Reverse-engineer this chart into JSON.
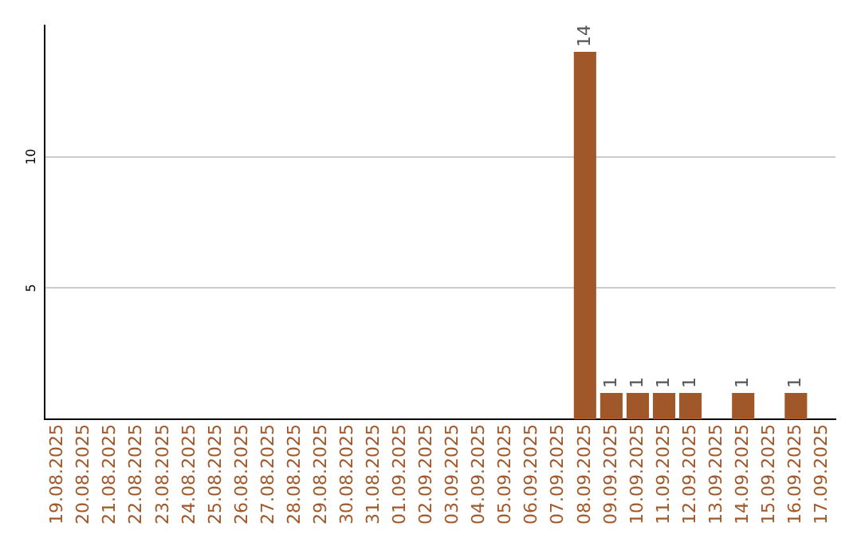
{
  "chart_data": {
    "type": "bar",
    "categories": [
      "19.08.2025",
      "20.08.2025",
      "21.08.2025",
      "22.08.2025",
      "23.08.2025",
      "24.08.2025",
      "25.08.2025",
      "26.08.2025",
      "27.08.2025",
      "28.08.2025",
      "29.08.2025",
      "30.08.2025",
      "31.08.2025",
      "01.09.2025",
      "02.09.2025",
      "03.09.2025",
      "04.09.2025",
      "05.09.2025",
      "06.09.2025",
      "07.09.2025",
      "08.09.2025",
      "09.09.2025",
      "10.09.2025",
      "11.09.2025",
      "12.09.2025",
      "13.09.2025",
      "14.09.2025",
      "15.09.2025",
      "16.09.2025",
      "17.09.2025"
    ],
    "values": [
      0,
      0,
      0,
      0,
      0,
      0,
      0,
      0,
      0,
      0,
      0,
      0,
      0,
      0,
      0,
      0,
      0,
      0,
      0,
      0,
      14,
      1,
      1,
      1,
      1,
      0,
      1,
      0,
      1,
      0
    ],
    "value_labels": [
      null,
      null,
      null,
      null,
      null,
      null,
      null,
      null,
      null,
      null,
      null,
      null,
      null,
      null,
      null,
      null,
      null,
      null,
      null,
      null,
      "14",
      "1",
      "1",
      "1",
      "1",
      null,
      "1",
      null,
      "1",
      null
    ],
    "color": "#a0582a",
    "ylim": [
      0,
      15
    ],
    "yticks": [
      5,
      10
    ],
    "grid": "y",
    "legend": false
  }
}
